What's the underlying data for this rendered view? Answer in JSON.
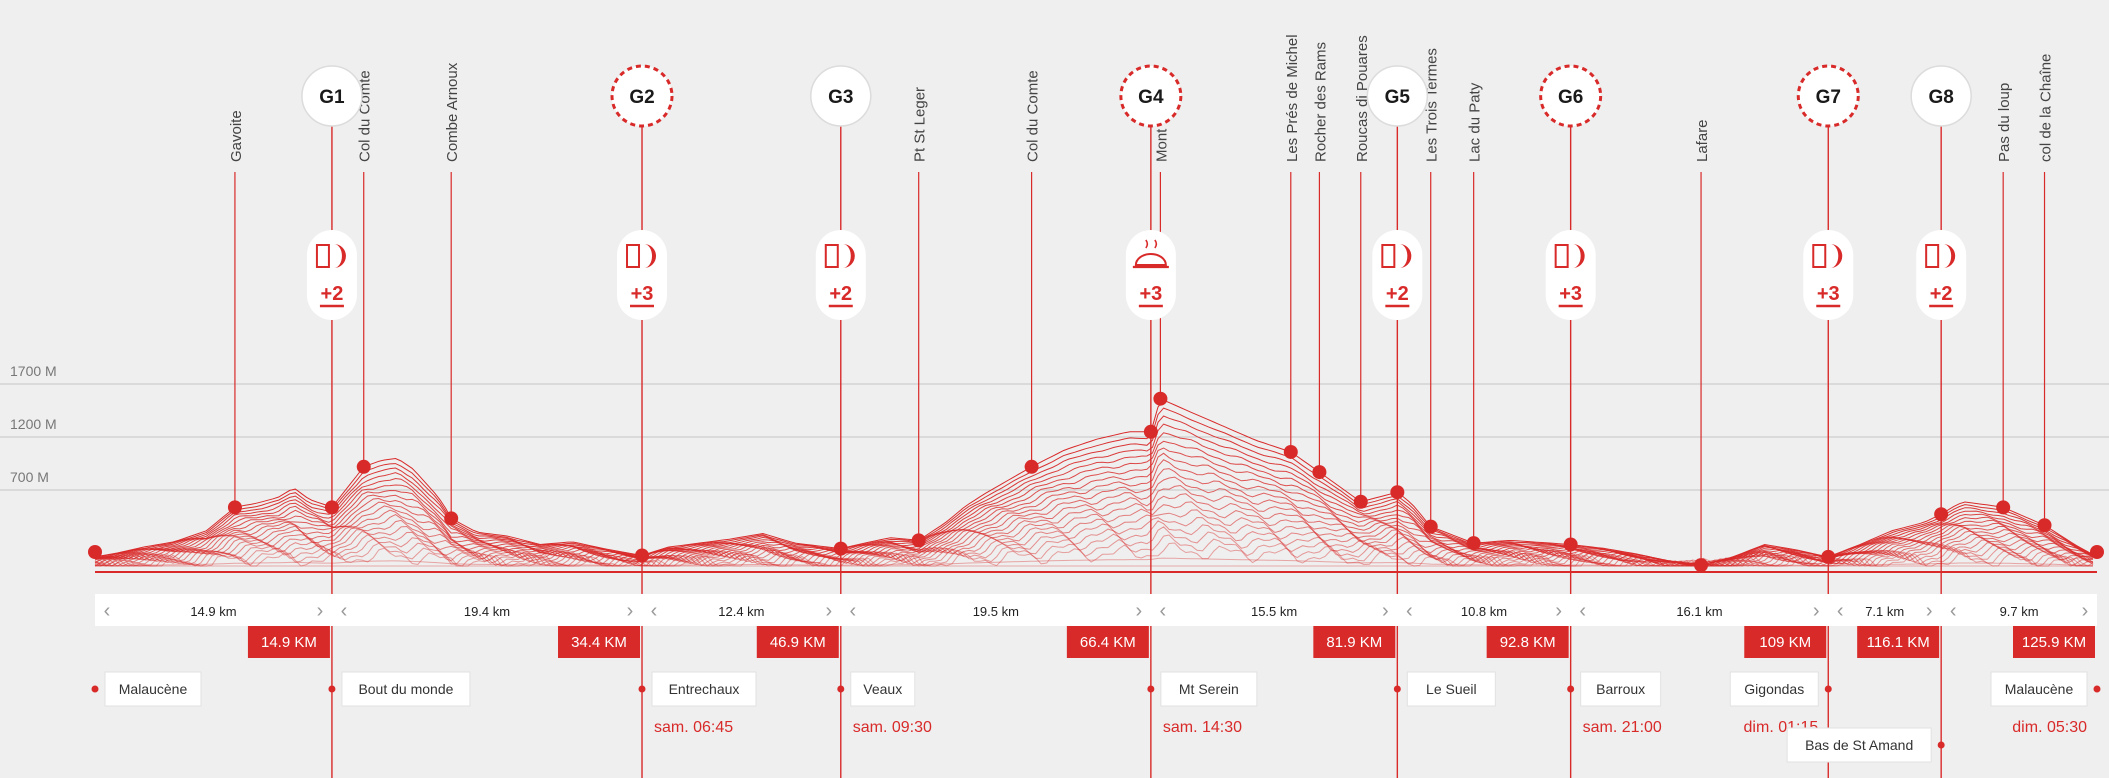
{
  "chart_data": {
    "type": "line",
    "title": "",
    "ylabel": "",
    "y_tick_labels": [
      "1700 M",
      "1200 M",
      "700 M"
    ],
    "y_ticks": [
      1700,
      1200,
      700
    ],
    "ylim": [
      220,
      1780
    ],
    "x_total_km": 125.9,
    "grid": true,
    "waypoints": [
      {
        "name": "Gavoite",
        "km": 8.8,
        "elev": 690
      },
      {
        "name": "Col du Comte",
        "km": 16.9,
        "elev": 1070
      },
      {
        "name": "Combe Arnoux",
        "km": 22.4,
        "elev": 610
      },
      {
        "name": "Pt St Leger",
        "km": 51.8,
        "elev": 450
      },
      {
        "name": "Col du Comte",
        "km": 58.9,
        "elev": 1070
      },
      {
        "name": "Mont Ventoux",
        "km": 67.0,
        "elev": 1712
      },
      {
        "name": "Les Prés de Michel",
        "km": 75.2,
        "elev": 1210
      },
      {
        "name": "Rocher des Rams",
        "km": 77.0,
        "elev": 1020
      },
      {
        "name": "Roucas di Pouares",
        "km": 79.6,
        "elev": 740
      },
      {
        "name": "Les Trois Termes",
        "km": 84.0,
        "elev": 550
      },
      {
        "name": "Lac du Paty",
        "km": 86.7,
        "elev": 430
      },
      {
        "name": "Lafare",
        "km": 101.0,
        "elev": 270
      },
      {
        "name": "Pas du loup",
        "km": 120.0,
        "elev": 690
      },
      {
        "name": "col de la Chaîne",
        "km": 122.6,
        "elev": 560
      }
    ],
    "aid_stations": [
      {
        "id": "G1",
        "km": 14.9,
        "elev": 690,
        "icon": "drink-food-icon",
        "points": "+2",
        "dashed": false
      },
      {
        "id": "G2",
        "km": 34.4,
        "elev": 340,
        "icon": "drink-food-icon",
        "points": "+3",
        "dashed": true
      },
      {
        "id": "G3",
        "km": 46.9,
        "elev": 390,
        "icon": "drink-food-icon",
        "points": "+2",
        "dashed": false
      },
      {
        "id": "G4",
        "km": 66.4,
        "elev": 1400,
        "icon": "hot-meal-icon",
        "points": "+3",
        "dashed": true
      },
      {
        "id": "G5",
        "km": 81.9,
        "elev": 830,
        "icon": "drink-food-icon",
        "points": "+2",
        "dashed": false
      },
      {
        "id": "G6",
        "km": 92.8,
        "elev": 420,
        "icon": "drink-food-icon",
        "points": "+3",
        "dashed": true
      },
      {
        "id": "G7",
        "km": 109.0,
        "elev": 330,
        "icon": "drink-food-icon",
        "points": "+3",
        "dashed": true
      },
      {
        "id": "G8",
        "km": 116.1,
        "elev": 640,
        "icon": "drink-food-icon",
        "points": "+2",
        "dashed": false
      }
    ],
    "segments": [
      {
        "distance": "14.9 km",
        "from_km": 0,
        "to_km": 14.9
      },
      {
        "distance": "19.4 km",
        "from_km": 14.9,
        "to_km": 34.4
      },
      {
        "distance": "12.4 km",
        "from_km": 34.4,
        "to_km": 46.9
      },
      {
        "distance": "19.5 km",
        "from_km": 46.9,
        "to_km": 66.4
      },
      {
        "distance": "15.5 km",
        "from_km": 66.4,
        "to_km": 81.9
      },
      {
        "distance": "10.8 km",
        "from_km": 81.9,
        "to_km": 92.8
      },
      {
        "distance": "16.1 km",
        "from_km": 92.8,
        "to_km": 109.0
      },
      {
        "distance": "7.1 km",
        "from_km": 109.0,
        "to_km": 116.1
      },
      {
        "distance": "9.7 km",
        "from_km": 116.1,
        "to_km": 125.9
      }
    ],
    "cumulative_km": [
      {
        "label": "14.9 KM",
        "km": 14.9
      },
      {
        "label": "34.4 KM",
        "km": 34.4
      },
      {
        "label": "46.9 KM",
        "km": 46.9
      },
      {
        "label": "66.4 KM",
        "km": 66.4
      },
      {
        "label": "81.9 KM",
        "km": 81.9
      },
      {
        "label": "92.8 KM",
        "km": 92.8
      },
      {
        "label": "109 KM",
        "km": 109.0
      },
      {
        "label": "116.1 KM",
        "km": 116.1
      },
      {
        "label": "125.9 KM",
        "km": 125.9
      }
    ],
    "locations": [
      {
        "name": "Malaucène",
        "km": 0,
        "time": "",
        "row": 0,
        "side": "right"
      },
      {
        "name": "Bout du monde",
        "km": 14.9,
        "time": "",
        "row": 0,
        "side": "right"
      },
      {
        "name": "Entrechaux",
        "km": 34.4,
        "time": "sam. 06:45",
        "row": 0,
        "side": "right"
      },
      {
        "name": "Veaux",
        "km": 46.9,
        "time": "sam. 09:30",
        "row": 0,
        "side": "right"
      },
      {
        "name": "Mt Serein",
        "km": 66.4,
        "time": "sam. 14:30",
        "row": 0,
        "side": "right"
      },
      {
        "name": "Le Sueil",
        "km": 81.9,
        "time": "",
        "row": 0,
        "side": "right"
      },
      {
        "name": "Barroux",
        "km": 92.8,
        "time": "sam. 21:00",
        "row": 0,
        "side": "right"
      },
      {
        "name": "Gigondas",
        "km": 109.0,
        "time": "dim. 01:15",
        "row": 0,
        "side": "left"
      },
      {
        "name": "Bas de St Amand",
        "km": 116.1,
        "time": "",
        "row": 1,
        "side": "left"
      },
      {
        "name": "Malaucène",
        "km": 125.9,
        "time": "dim. 05:30",
        "row": 0,
        "side": "left"
      }
    ],
    "profile": {
      "series": [
        {
          "values": [
            [
              0,
              330
            ],
            [
              1.5,
              360
            ],
            [
              3,
              400
            ],
            [
              5,
              440
            ],
            [
              7,
              520
            ],
            [
              8.8,
              690
            ],
            [
              10,
              720
            ],
            [
              11.5,
              780
            ],
            [
              12.5,
              870
            ],
            [
              13.5,
              760
            ],
            [
              14.9,
              690
            ],
            [
              15.6,
              820
            ],
            [
              16.9,
              1070
            ],
            [
              18,
              1130
            ],
            [
              19,
              1150
            ],
            [
              20,
              1050
            ],
            [
              21.5,
              800
            ],
            [
              22.4,
              610
            ],
            [
              24,
              510
            ],
            [
              26,
              480
            ],
            [
              28,
              420
            ],
            [
              30,
              440
            ],
            [
              32,
              390
            ],
            [
              34.4,
              340
            ],
            [
              36,
              400
            ],
            [
              38,
              430
            ],
            [
              40,
              460
            ],
            [
              42,
              500
            ],
            [
              44,
              430
            ],
            [
              46.9,
              390
            ],
            [
              48,
              420
            ],
            [
              50,
              470
            ],
            [
              51.8,
              450
            ],
            [
              53.5,
              580
            ],
            [
              56,
              820
            ],
            [
              58.9,
              1070
            ],
            [
              61,
              1230
            ],
            [
              63,
              1330
            ],
            [
              65,
              1400
            ],
            [
              66.4,
              1400
            ],
            [
              67,
              1712
            ],
            [
              69,
              1580
            ],
            [
              71,
              1450
            ],
            [
              73,
              1320
            ],
            [
              75.2,
              1210
            ],
            [
              77,
              1020
            ],
            [
              79.6,
              740
            ],
            [
              81.9,
              830
            ],
            [
              82.5,
              760
            ],
            [
              84,
              550
            ],
            [
              86.7,
              430
            ],
            [
              89,
              450
            ],
            [
              92.8,
              420
            ],
            [
              95,
              390
            ],
            [
              97,
              350
            ],
            [
              99,
              300
            ],
            [
              101,
              270
            ],
            [
              103,
              330
            ],
            [
              105,
              420
            ],
            [
              107,
              380
            ],
            [
              109,
              330
            ],
            [
              111,
              420
            ],
            [
              113,
              520
            ],
            [
              115,
              580
            ],
            [
              116.1,
              640
            ],
            [
              117.5,
              740
            ],
            [
              120,
              690
            ],
            [
              122.6,
              560
            ],
            [
              124.5,
              420
            ],
            [
              125.9,
              330
            ]
          ]
        }
      ]
    }
  }
}
